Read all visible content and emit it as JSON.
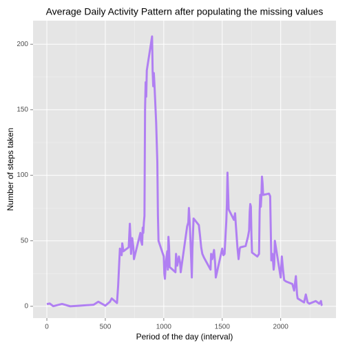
{
  "chart_data": {
    "type": "line",
    "title": "Average Daily Activity Pattern after populating the missing values",
    "x_label": "Period of the day (interval)",
    "y_label": "Number of steps taken",
    "x": [
      0,
      25,
      55,
      130,
      200,
      400,
      440,
      500,
      540,
      555,
      600,
      610,
      620,
      625,
      635,
      640,
      645,
      655,
      700,
      710,
      715,
      720,
      730,
      740,
      745,
      800,
      805,
      815,
      820,
      825,
      830,
      835,
      840,
      845,
      850,
      855,
      900,
      905,
      910,
      915,
      920,
      925,
      935,
      945,
      950,
      955,
      1000,
      1005,
      1010,
      1015,
      1020,
      1030,
      1035,
      1040,
      1045,
      1050,
      1100,
      1105,
      1115,
      1130,
      1140,
      1145,
      1200,
      1210,
      1215,
      1220,
      1225,
      1235,
      1240,
      1245,
      1255,
      1300,
      1310,
      1320,
      1330,
      1345,
      1400,
      1405,
      1415,
      1430,
      1440,
      1445,
      1500,
      1510,
      1520,
      1530,
      1535,
      1540,
      1545,
      1550,
      1555,
      1600,
      1610,
      1615,
      1630,
      1640,
      1650,
      1655,
      1700,
      1720,
      1730,
      1735,
      1740,
      1745,
      1750,
      1755,
      1800,
      1815,
      1820,
      1825,
      1830,
      1835,
      1840,
      1845,
      1850,
      1900,
      1910,
      1920,
      1930,
      1940,
      1945,
      1950,
      2000,
      2010,
      2020,
      2030,
      2045,
      2100,
      2115,
      2130,
      2140,
      2145,
      2200,
      2215,
      2230,
      2245,
      2300,
      2315,
      2330,
      2345,
      2350,
      2355
    ],
    "series": [
      {
        "name": "steps",
        "color": "#b07ff2",
        "values": [
          1.7,
          2.1,
          0.1,
          1.8,
          0,
          1.2,
          3.5,
          0.5,
          3.5,
          6,
          2.5,
          16,
          35,
          44,
          40,
          39,
          48,
          42,
          45,
          63,
          53,
          40,
          52,
          45,
          36,
          56,
          50,
          47,
          60,
          56,
          64,
          69,
          150,
          171,
          160,
          180,
          206,
          179,
          168,
          178,
          170,
          160,
          140,
          110,
          70,
          50,
          38,
          25,
          21,
          29,
          35,
          42,
          28,
          53,
          46,
          30,
          26,
          40,
          31,
          38,
          33,
          26,
          61,
          64,
          75,
          67,
          58,
          35,
          22,
          44,
          67,
          62,
          54,
          45,
          40,
          37,
          28,
          40,
          36,
          43,
          32,
          22,
          44,
          39,
          40,
          57,
          65,
          78,
          102,
          88,
          74,
          66,
          71,
          64,
          45,
          36,
          44,
          45,
          46,
          53,
          58,
          72,
          78,
          76,
          54,
          41,
          38,
          40,
          72,
          85,
          76,
          84,
          99,
          94,
          85,
          86,
          84,
          35,
          40,
          28,
          32,
          50,
          22,
          38,
          28,
          20,
          19,
          17,
          12,
          23,
          9,
          6,
          3,
          9,
          3,
          2,
          4,
          3,
          2,
          4,
          1,
          0.5
        ]
      }
    ],
    "xlim": [
      -118,
      2473
    ],
    "ylim": [
      -9,
      218
    ],
    "xticks": [
      0,
      500,
      1000,
      1500,
      2000
    ],
    "yticks": [
      0,
      50,
      100,
      150,
      200
    ],
    "grid": true
  }
}
